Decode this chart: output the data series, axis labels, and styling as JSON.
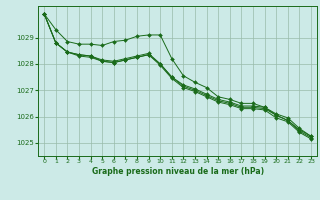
{
  "bg_color": "#cceae7",
  "grid_color": "#99bbaa",
  "line_color": "#1a6b1a",
  "marker": "D",
  "marker_size": 2.0,
  "title": "Graphe pression niveau de la mer (hPa)",
  "xlim": [
    -0.5,
    23.5
  ],
  "ylim": [
    1024.5,
    1030.2
  ],
  "yticks": [
    1025,
    1026,
    1027,
    1028,
    1029
  ],
  "xticks": [
    0,
    1,
    2,
    3,
    4,
    5,
    6,
    7,
    8,
    9,
    10,
    11,
    12,
    13,
    14,
    15,
    16,
    17,
    18,
    19,
    20,
    21,
    22,
    23
  ],
  "series": [
    [
      1029.9,
      1029.3,
      1028.85,
      1028.75,
      1028.75,
      1028.7,
      1028.85,
      1028.9,
      1029.05,
      1029.1,
      1029.1,
      1028.2,
      1027.55,
      1027.3,
      1027.1,
      1026.75,
      1026.65,
      1026.5,
      1026.5,
      1026.35,
      1026.05,
      1025.85,
      1025.5,
      1025.25
    ],
    [
      1029.9,
      1028.8,
      1028.45,
      1028.35,
      1028.3,
      1028.15,
      1028.1,
      1028.2,
      1028.3,
      1028.4,
      1028.0,
      1027.5,
      1027.2,
      1027.05,
      1026.85,
      1026.65,
      1026.55,
      1026.4,
      1026.4,
      1026.35,
      1026.1,
      1025.95,
      1025.55,
      1025.25
    ],
    [
      1029.9,
      1028.8,
      1028.45,
      1028.3,
      1028.25,
      1028.1,
      1028.05,
      1028.15,
      1028.25,
      1028.35,
      1027.95,
      1027.45,
      1027.1,
      1026.95,
      1026.75,
      1026.55,
      1026.45,
      1026.3,
      1026.3,
      1026.25,
      1025.95,
      1025.8,
      1025.4,
      1025.15
    ],
    [
      1029.9,
      1028.8,
      1028.45,
      1028.35,
      1028.3,
      1028.1,
      1028.05,
      1028.15,
      1028.25,
      1028.35,
      1028.0,
      1027.5,
      1027.15,
      1027.0,
      1026.8,
      1026.6,
      1026.5,
      1026.35,
      1026.35,
      1026.3,
      1026.05,
      1025.85,
      1025.45,
      1025.2
    ]
  ]
}
